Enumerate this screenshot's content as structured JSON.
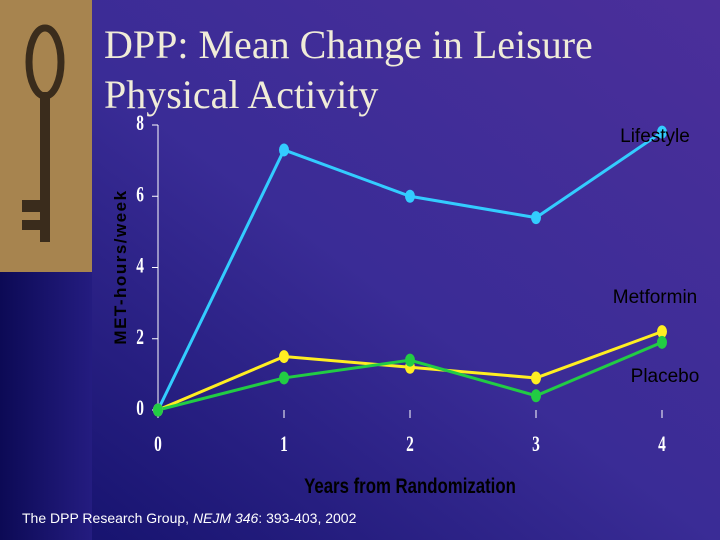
{
  "title": [
    "DPP: Mean Change in Leisure",
    "Physical Activity"
  ],
  "source": [
    "The DPP Research Group, ",
    "NEJM 346",
    ": 393-403, 2002"
  ],
  "chart_data": {
    "type": "line",
    "y_label": "MET-hours/week",
    "x_label": "Years from Randomization",
    "x": [
      0,
      1,
      2,
      3,
      4
    ],
    "xlim": [
      0,
      4
    ],
    "xticks": [
      0,
      1,
      2,
      3,
      4
    ],
    "ylim": [
      0,
      8
    ],
    "yticks": [
      0,
      2,
      4,
      6,
      8
    ],
    "series": [
      {
        "name": "Lifestyle",
        "color": "#33ccff",
        "values": [
          0,
          7.3,
          6.0,
          5.4,
          7.8
        ]
      },
      {
        "name": "Metformin",
        "color": "#ffee22",
        "values": [
          0,
          1.5,
          1.2,
          0.9,
          2.2
        ]
      },
      {
        "name": "Placebo",
        "color": "#22cc44",
        "values": [
          0,
          0.9,
          1.4,
          0.4,
          1.9
        ]
      }
    ]
  }
}
